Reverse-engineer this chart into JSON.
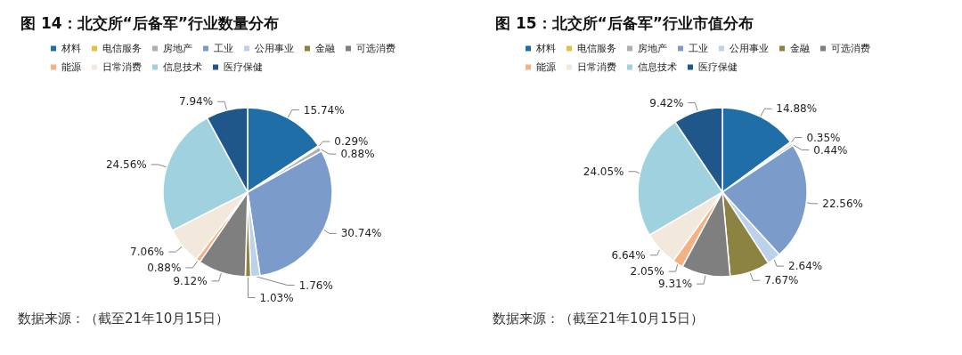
{
  "chart_data": [
    {
      "type": "pie",
      "title": "图 14：北交所“后备军”行业数量分布",
      "legend": "top left",
      "categories": [
        "材料",
        "电信服务",
        "房地产",
        "工业",
        "公用事业",
        "金融",
        "可选消费",
        "能源",
        "日常消费",
        "信息技术",
        "医疗保健"
      ],
      "values": [
        15.74,
        0.29,
        0.88,
        30.74,
        1.76,
        1.03,
        9.12,
        0.88,
        7.06,
        24.56,
        7.94
      ],
      "value_labels": [
        "15.74%",
        "0.29%",
        "0.88%",
        "30.74%",
        "1.76%",
        "1.03%",
        "9.12%",
        "0.88%",
        "7.06%",
        "24.56%",
        "7.94%"
      ],
      "colors": [
        "#1f6ea8",
        "#e6c044",
        "#aeb0b2",
        "#7b9cca",
        "#bcd1ea",
        "#8c8343",
        "#7f7f7f",
        "#f5b183",
        "#f2e9dc",
        "#9fd1df",
        "#20578a"
      ],
      "annotations": [
        "数据来源：（截至21年10月15日）"
      ]
    },
    {
      "type": "pie",
      "title": "图 15：北交所“后备军”行业市值分布",
      "legend": "top left",
      "categories": [
        "材料",
        "电信服务",
        "房地产",
        "工业",
        "公用事业",
        "金融",
        "可选消费",
        "能源",
        "日常消费",
        "信息技术",
        "医疗保健"
      ],
      "values": [
        14.88,
        0.35,
        0.44,
        22.56,
        2.64,
        7.67,
        9.31,
        2.05,
        6.64,
        24.05,
        9.42
      ],
      "value_labels": [
        "14.88%",
        "0.35%",
        "0.44%",
        "22.56%",
        "2.64%",
        "7.67%",
        "9.31%",
        "2.05%",
        "6.64%",
        "24.05%",
        "9.42%"
      ],
      "colors": [
        "#1f6ea8",
        "#e6c044",
        "#aeb0b2",
        "#7b9cca",
        "#bcd1ea",
        "#8c8343",
        "#7f7f7f",
        "#f5b183",
        "#f2e9dc",
        "#9fd1df",
        "#20578a"
      ],
      "annotations": [
        "数据来源：（截至21年10月15日）"
      ]
    }
  ]
}
